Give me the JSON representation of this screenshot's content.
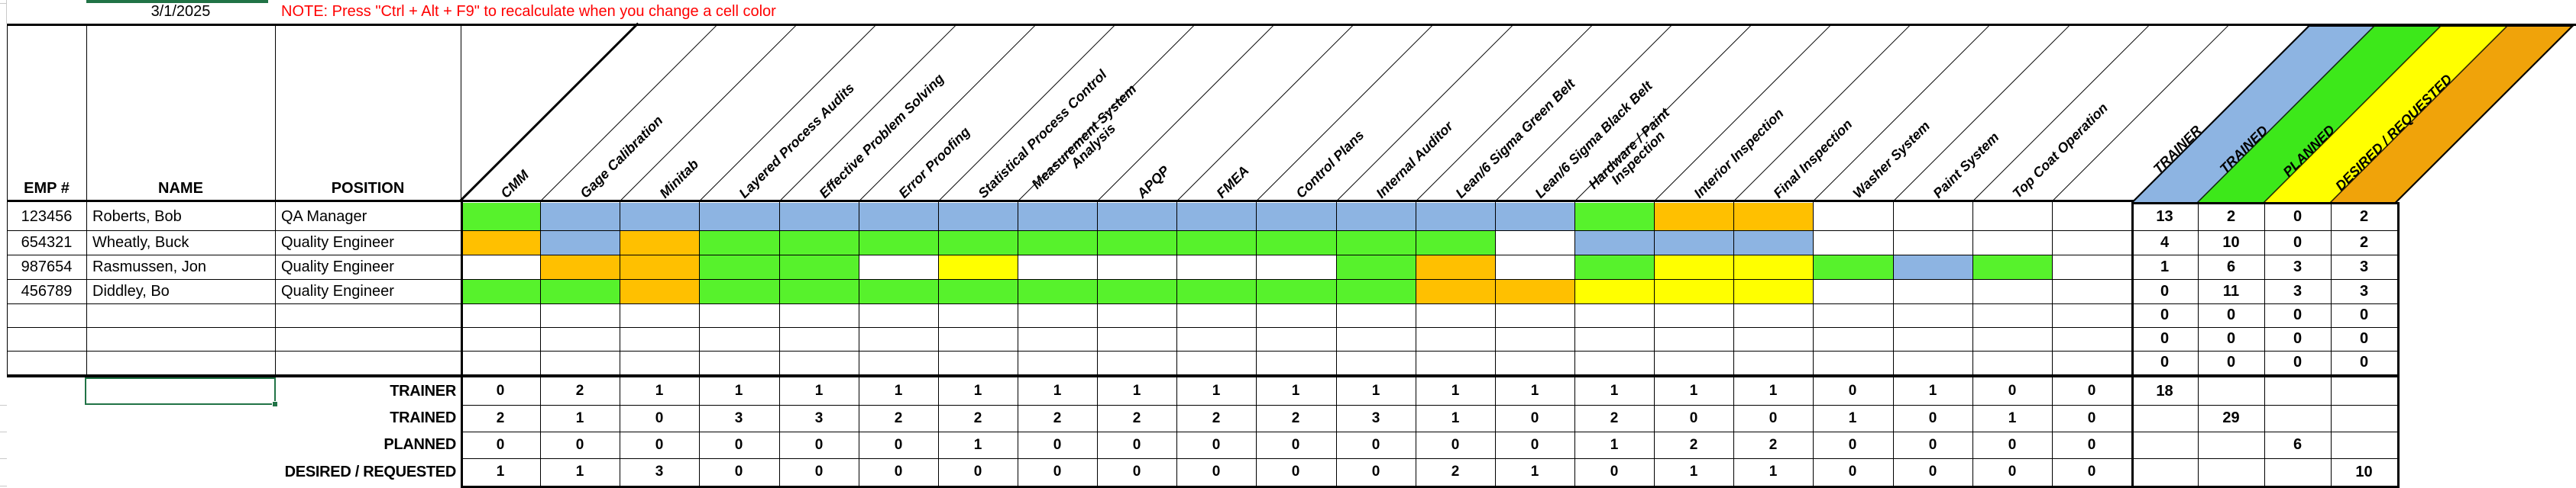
{
  "sheet": {
    "date": "3/1/2025",
    "note": "NOTE: Press \"Ctrl + Alt + F9\" to recalculate when you change a cell color",
    "columns": {
      "emp": "EMP #",
      "name": "NAME",
      "position": "POSITION"
    },
    "skills": [
      "CMM",
      "Gage Calibration",
      "Minitab",
      "Layered Process Audits",
      "Effective Problem Solving",
      "Error Proofing",
      "Statistical Process Control",
      "Measurement System\nAnalysis",
      "APQP",
      "FMEA",
      "Control Plans",
      "Internal Auditor",
      "Lean/6 Sigma Green Belt",
      "Lean/6 Sigma Black Belt",
      "Hardware / Paint\nInspection",
      "Interior Inspection",
      "Final Inspection",
      "Washer System",
      "Paint System",
      "Top Coat Operation",
      ""
    ],
    "bands": [
      {
        "label": "TRAINER",
        "color": "#8DB4E2"
      },
      {
        "label": "TRAINED",
        "color": "#3DE81A"
      },
      {
        "label": "PLANNED",
        "color": "#FFFF00"
      },
      {
        "label": "DESIRED / REQUESTED",
        "color": "#F0A30A"
      }
    ],
    "legend_colors": {
      "B": "#8DB4E2",
      "G": "#57F22C",
      "Y": "#FFFF00",
      "O": "#FFC000",
      "W": "#FFFFFF"
    },
    "employees": [
      {
        "emp": "123456",
        "name": "Roberts, Bob",
        "position": "QA Manager",
        "cells": "GBBBBBBBBBBBBBGOOWWWW",
        "trainer": "13",
        "trained": "2",
        "planned": "0",
        "desired": "2"
      },
      {
        "emp": "654321",
        "name": "Wheatly, Buck",
        "position": "Quality Engineer",
        "cells": "OBOGGGGGGGGGGWBBBWWWW",
        "trainer": "4",
        "trained": "10",
        "planned": "0",
        "desired": "2"
      },
      {
        "emp": "987654",
        "name": "Rasmussen, Jon",
        "position": "Quality Engineer",
        "cells": "WOOGGWYWWWWGOWGYYGBGW",
        "trainer": "1",
        "trained": "6",
        "planned": "3",
        "desired": "3"
      },
      {
        "emp": "456789",
        "name": "Diddley, Bo",
        "position": "Quality Engineer",
        "cells": "GGOGGGGGGGGGOOYYYWWWW",
        "trainer": "0",
        "trained": "11",
        "planned": "3",
        "desired": "3"
      },
      {
        "emp": "",
        "name": "",
        "position": "",
        "cells": "WWWWWWWWWWWWWWWWWWWWW",
        "trainer": "0",
        "trained": "0",
        "planned": "0",
        "desired": "0"
      },
      {
        "emp": "",
        "name": "",
        "position": "",
        "cells": "WWWWWWWWWWWWWWWWWWWWW",
        "trainer": "0",
        "trained": "0",
        "planned": "0",
        "desired": "0"
      },
      {
        "emp": "",
        "name": "",
        "position": "",
        "cells": "WWWWWWWWWWWWWWWWWWWWW",
        "trainer": "0",
        "trained": "0",
        "planned": "0",
        "desired": "0"
      }
    ],
    "totals": {
      "rows": [
        {
          "label": "TRAINER",
          "values": [
            0,
            2,
            1,
            1,
            1,
            1,
            1,
            1,
            1,
            1,
            1,
            1,
            1,
            1,
            1,
            1,
            1,
            0,
            1,
            0,
            0
          ],
          "total": "18",
          "total_col": 0
        },
        {
          "label": "TRAINED",
          "values": [
            2,
            1,
            0,
            3,
            3,
            2,
            2,
            2,
            2,
            2,
            2,
            3,
            1,
            0,
            2,
            0,
            0,
            1,
            0,
            1,
            0
          ],
          "total": "29",
          "total_col": 1
        },
        {
          "label": "PLANNED",
          "values": [
            0,
            0,
            0,
            0,
            0,
            0,
            1,
            0,
            0,
            0,
            0,
            0,
            0,
            0,
            1,
            2,
            2,
            0,
            0,
            0,
            0
          ],
          "total": "6",
          "total_col": 2
        },
        {
          "label": "DESIRED / REQUESTED",
          "values": [
            1,
            1,
            3,
            0,
            0,
            0,
            0,
            0,
            0,
            0,
            0,
            0,
            2,
            1,
            0,
            1,
            1,
            0,
            0,
            0,
            0
          ],
          "total": "10",
          "total_col": 3
        }
      ]
    }
  }
}
